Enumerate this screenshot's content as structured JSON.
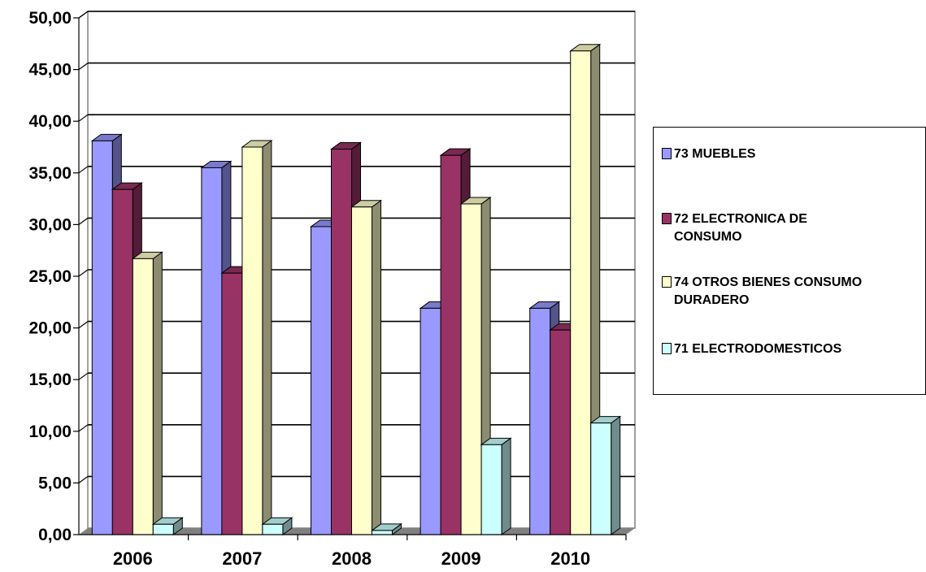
{
  "chart_data": {
    "type": "bar",
    "categories": [
      "2006",
      "2007",
      "2008",
      "2009",
      "2010"
    ],
    "ylim": [
      0,
      50
    ],
    "yticks": [
      "0,00",
      "5,00",
      "10,00",
      "15,00",
      "20,00",
      "25,00",
      "30,00",
      "35,00",
      "40,00",
      "45,00",
      "50,00"
    ],
    "grid": true,
    "legend_position": "right",
    "series": [
      {
        "name": "73 MUEBLES",
        "color": "#9999ff",
        "values": [
          38.1,
          35.5,
          29.8,
          21.9,
          21.9
        ]
      },
      {
        "name": "72 ELECTRONICA DE\nCONSUMO",
        "color": "#993366",
        "values": [
          33.4,
          25.3,
          37.3,
          36.7,
          19.8
        ]
      },
      {
        "name": "74 OTROS BIENES CONSUMO\nDURADERO",
        "color": "#ffffcc",
        "values": [
          26.7,
          37.5,
          31.7,
          32.0,
          46.8
        ]
      },
      {
        "name": "71 ELECTRODOMESTICOS",
        "color": "#ccffff",
        "values": [
          1.0,
          1.0,
          0.4,
          8.7,
          10.8
        ]
      }
    ]
  }
}
